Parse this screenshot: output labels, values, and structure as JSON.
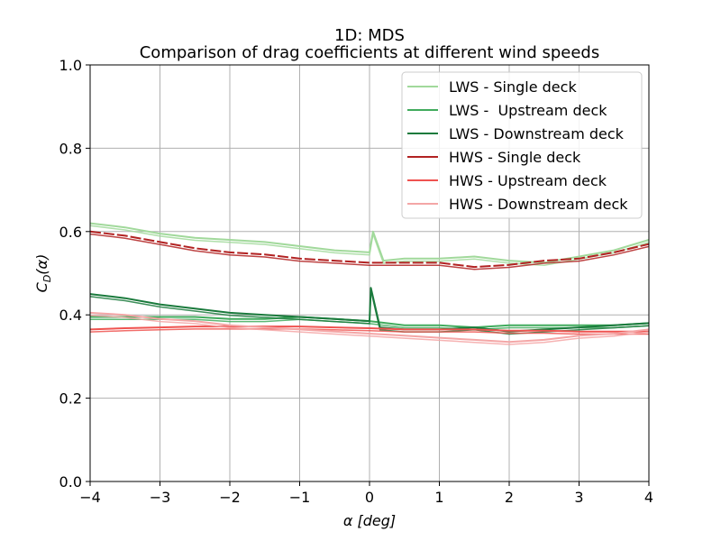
{
  "chart_data": {
    "type": "line",
    "title": "1D: MDS",
    "subtitle": "Comparison of drag coefficients at different wind speeds",
    "xlabel": "α [deg]",
    "ylabel": "C_D(α)",
    "ylabel_main": "C",
    "ylabel_sub": "D",
    "ylabel_tail": "(α)",
    "xlim": [
      -4,
      4
    ],
    "ylim": [
      0.0,
      1.0
    ],
    "xticks": [
      -4,
      -3,
      -2,
      -1,
      0,
      1,
      2,
      3,
      4
    ],
    "xtick_labels": [
      "−4",
      "−3",
      "−2",
      "−1",
      "0",
      "1",
      "2",
      "3",
      "4"
    ],
    "yticks": [
      0.0,
      0.2,
      0.4,
      0.6,
      0.8,
      1.0
    ],
    "ytick_labels": [
      "0.0",
      "0.2",
      "0.4",
      "0.6",
      "0.8",
      "1.0"
    ],
    "grid": true,
    "legend_position": "top-right",
    "series": [
      {
        "name": "LWS - Single deck",
        "color": "#a1d99b",
        "style": "solid",
        "x": [
          -4.0,
          -3.5,
          -3.0,
          -2.5,
          -2.0,
          -1.5,
          -1.0,
          -0.5,
          0.0,
          0.05,
          0.2,
          0.5,
          1.0,
          1.5,
          2.0,
          2.5,
          3.0,
          3.5,
          4.0
        ],
        "y": [
          0.62,
          0.61,
          0.595,
          0.585,
          0.58,
          0.575,
          0.565,
          0.555,
          0.55,
          0.6,
          0.53,
          0.535,
          0.535,
          0.54,
          0.53,
          0.525,
          0.54,
          0.555,
          0.58
        ]
      },
      {
        "name": "LWS -  Upstream deck",
        "color": "#41ab5d",
        "style": "solid",
        "x": [
          -4.0,
          -3.5,
          -3.0,
          -2.5,
          -2.0,
          -1.5,
          -1.0,
          -0.5,
          0.0,
          0.5,
          1.0,
          1.5,
          2.0,
          2.5,
          3.0,
          3.5,
          4.0
        ],
        "y": [
          0.395,
          0.395,
          0.395,
          0.395,
          0.39,
          0.39,
          0.395,
          0.39,
          0.385,
          0.375,
          0.375,
          0.37,
          0.375,
          0.375,
          0.375,
          0.375,
          0.38
        ]
      },
      {
        "name": "LWS - Downstream deck",
        "color": "#1a7a3c",
        "style": "solid",
        "x": [
          -4.0,
          -3.5,
          -3.0,
          -2.5,
          -2.0,
          -1.5,
          -1.0,
          -0.5,
          0.0,
          0.02,
          0.15,
          0.5,
          1.0,
          1.5,
          2.0,
          2.5,
          3.0,
          3.5,
          4.0
        ],
        "y": [
          0.45,
          0.44,
          0.425,
          0.415,
          0.405,
          0.4,
          0.395,
          0.39,
          0.385,
          0.465,
          0.37,
          0.365,
          0.365,
          0.37,
          0.36,
          0.365,
          0.37,
          0.375,
          0.38
        ]
      },
      {
        "name": "HWS - Single deck",
        "color": "#b22222",
        "style": "dashed-solid",
        "x": [
          -4.0,
          -3.5,
          -3.0,
          -2.5,
          -2.0,
          -1.5,
          -1.0,
          -0.5,
          0.0,
          0.5,
          1.0,
          1.5,
          2.0,
          2.5,
          3.0,
          3.5,
          4.0
        ],
        "y": [
          0.6,
          0.59,
          0.575,
          0.56,
          0.55,
          0.545,
          0.535,
          0.53,
          0.525,
          0.525,
          0.525,
          0.515,
          0.52,
          0.53,
          0.535,
          0.55,
          0.57
        ]
      },
      {
        "name": "HWS - Upstream deck",
        "color": "#ef5350",
        "style": "solid",
        "x": [
          -4.0,
          -3.5,
          -3.0,
          -2.5,
          -2.0,
          -1.5,
          -1.0,
          -0.5,
          0.0,
          0.5,
          1.0,
          1.5,
          2.0,
          2.5,
          3.0,
          3.5,
          4.0
        ],
        "y": [
          0.365,
          0.368,
          0.37,
          0.372,
          0.372,
          0.372,
          0.372,
          0.37,
          0.368,
          0.365,
          0.365,
          0.365,
          0.362,
          0.362,
          0.36,
          0.36,
          0.36
        ]
      },
      {
        "name": "HWS - Downstream deck",
        "color": "#f4a6a6",
        "style": "solid",
        "x": [
          -4.0,
          -3.5,
          -3.0,
          -2.5,
          -2.0,
          -1.5,
          -1.0,
          -0.5,
          0.0,
          0.5,
          1.0,
          1.5,
          2.0,
          2.5,
          3.0,
          3.5,
          4.0
        ],
        "y": [
          0.405,
          0.4,
          0.39,
          0.385,
          0.375,
          0.37,
          0.365,
          0.36,
          0.355,
          0.35,
          0.345,
          0.34,
          0.335,
          0.34,
          0.35,
          0.355,
          0.365
        ]
      }
    ]
  }
}
